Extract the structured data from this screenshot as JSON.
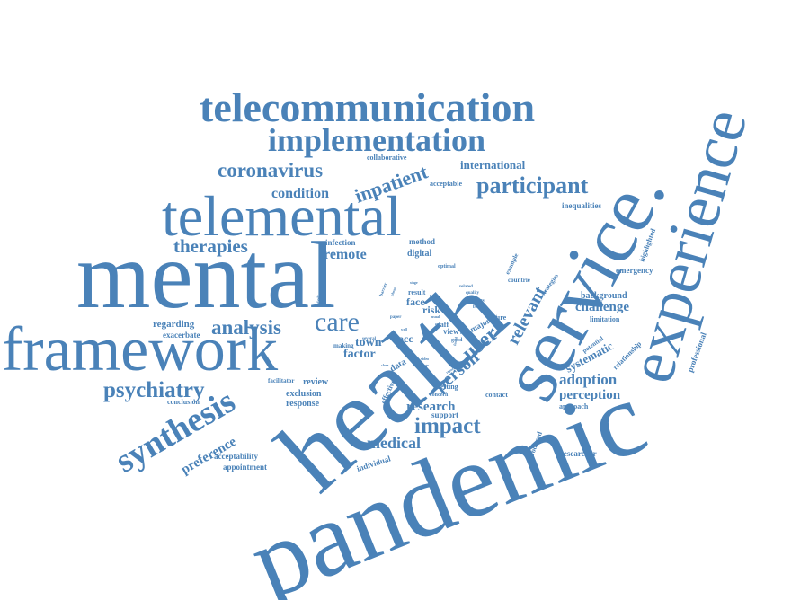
{
  "word_color": "#4a82b8",
  "background_color": "#ffffff",
  "words": {
    "pandemic": "pandemic",
    "health": "health",
    "mental": "mental",
    "service": "service.",
    "experience": "experience",
    "framework": "framework",
    "telemental": "telemental",
    "telecommunication": "telecommunication",
    "implementation": "implementation",
    "synthesis": "synthesis",
    "coronavirus": "coronavirus",
    "participant": "participant",
    "inpatient": "inpatient",
    "psychiatry": "psychiatry",
    "care": "care",
    "analysis": "analysis",
    "therapies": "therapies",
    "impact": "impact",
    "medical": "medical",
    "condition": "condition",
    "remote": "remote",
    "user": "user",
    "person": "person",
    "relevant": "relevant",
    "adoption": "adoption",
    "challenge": "challenge",
    "perception": "perception",
    "systematic": "systematic",
    "preference": "preference",
    "factor": "factor",
    "town": "town",
    "research": "research",
    "international": "international",
    "collaborative": "collaborative",
    "acceptable": "acceptable",
    "inequalities": "inequalities",
    "highlighted": "highlighted",
    "emergency": "emergency",
    "background": "background",
    "limitation": "limitation",
    "professional": "professional",
    "relationship": "relationship",
    "potential": "potential",
    "approach": "approach",
    "researcher": "researcher",
    "produced": "produced",
    "strategies": "strategies",
    "countrie": "countrie",
    "example": "example",
    "method": "method",
    "digital": "digital",
    "infection": "infection",
    "optimal": "optimal",
    "regarding": "regarding",
    "exacerbate": "exacerbate",
    "review": "review",
    "exclusion": "exclusion",
    "response": "response",
    "conclusion": "conclusion",
    "facilitator": "facilitator",
    "acceptability": "acceptability",
    "appointment": "appointment",
    "individual": "individual",
    "support": "support",
    "contact": "contact",
    "concern": "concern",
    "setting": "setting",
    "future": "future",
    "majority": "majority",
    "risk": "risk",
    "face": "face",
    "result": "result",
    "staff": "staff",
    "view": "view",
    "good": "good",
    "acc": "acc",
    "data": "data",
    "effective": "effective",
    "making": "making",
    "several": "several",
    "paper": "paper",
    "studies": "studies",
    "benefit": "benefit",
    "quality": "quality",
    "related": "related",
    "collection": "collection",
    "barrier": "barrier",
    "stage": "stage",
    "phone": "phone",
    "better": "better",
    "well": "well",
    "usual": "usual",
    "video": "video",
    "range": "range",
    "report": "report",
    "close": "close",
    "theory": "theory",
    "found": "found"
  }
}
